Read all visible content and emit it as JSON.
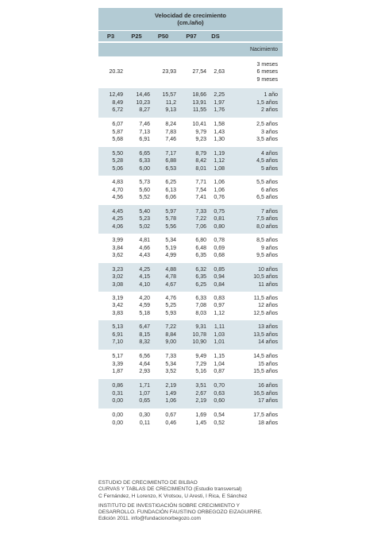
{
  "header": {
    "title": "Velocidad de crecimiento",
    "subtitle": "(cm./año)",
    "columns": [
      "P3",
      "P25",
      "P50",
      "P97",
      "DS"
    ]
  },
  "birth_label": "Nacimiento",
  "groups": [
    {
      "shade": "plain",
      "p3": [
        "20.32"
      ],
      "p25": [
        ""
      ],
      "p50": [
        "23,93"
      ],
      "p97": [
        "27,54"
      ],
      "ds": [
        "2,63"
      ],
      "age": [
        "3 meses",
        "6 meses",
        "9 meses"
      ]
    },
    {
      "shade": "shaded",
      "p3": [
        "12,49",
        "8,49",
        "6,72"
      ],
      "p25": [
        "14,46",
        "10,23",
        "8,27"
      ],
      "p50": [
        "15,57",
        "11,2",
        "9,13"
      ],
      "p97": [
        "18,66",
        "13,91",
        "11,55"
      ],
      "ds": [
        "2,25",
        "1,97",
        "1,76"
      ],
      "age": [
        "1 año",
        "1,5 años",
        "2 años"
      ]
    },
    {
      "shade": "plain",
      "p3": [
        "6,07",
        "5,87",
        "5,68"
      ],
      "p25": [
        "7,46",
        "7,13",
        "6,91"
      ],
      "p50": [
        "8,24",
        "7,83",
        "7,46"
      ],
      "p97": [
        "10,41",
        "9,79",
        "9,23"
      ],
      "ds": [
        "1,58",
        "1,43",
        "1,30"
      ],
      "age": [
        "2,5 años",
        "3 años",
        "3,5 años"
      ]
    },
    {
      "shade": "shaded",
      "p3": [
        "5,50",
        "5,28",
        "5,06"
      ],
      "p25": [
        "6,65",
        "6,33",
        "6,00"
      ],
      "p50": [
        "7,17",
        "6,88",
        "6,53"
      ],
      "p97": [
        "8,79",
        "8,42",
        "8,01"
      ],
      "ds": [
        "1,19",
        "1,12",
        "1,08"
      ],
      "age": [
        "4 años",
        "4,5 años",
        "5 años"
      ]
    },
    {
      "shade": "plain",
      "p3": [
        "4,83",
        "4,70",
        "4,56"
      ],
      "p25": [
        "5,73",
        "5,60",
        "5,52"
      ],
      "p50": [
        "6,25",
        "6,13",
        "6,06"
      ],
      "p97": [
        "7,71",
        "7,54",
        "7,41"
      ],
      "ds": [
        "1,06",
        "1,06",
        "0,76"
      ],
      "age": [
        "5,5 años",
        "6 años",
        "6,5 años"
      ]
    },
    {
      "shade": "shaded",
      "p3": [
        "4,45",
        "4,25",
        "4,06"
      ],
      "p25": [
        "5,40",
        "5,23",
        "5,02"
      ],
      "p50": [
        "5,97",
        "5,78",
        "5,56"
      ],
      "p97": [
        "7,33",
        "7,22",
        "7,06"
      ],
      "ds": [
        "0,75",
        "0,81",
        "0,80"
      ],
      "age": [
        "7 años",
        "7,5 años",
        "8,0 años"
      ]
    },
    {
      "shade": "plain",
      "p3": [
        "3,99",
        "3,84",
        "3,62"
      ],
      "p25": [
        "4,81",
        "4,66",
        "4,43"
      ],
      "p50": [
        "5,34",
        "5,19",
        "4,99"
      ],
      "p97": [
        "6,80",
        "6,48",
        "6,35"
      ],
      "ds": [
        "0,78",
        "0,69",
        "0,68"
      ],
      "age": [
        "8,5 años",
        "9 años",
        "9,5 años"
      ]
    },
    {
      "shade": "shaded",
      "p3": [
        "3,23",
        "3,02",
        "3,08"
      ],
      "p25": [
        "4,25",
        "4,15",
        "4,10"
      ],
      "p50": [
        "4,88",
        "4,78",
        "4,67"
      ],
      "p97": [
        "6,32",
        "6,35",
        "6,25"
      ],
      "ds": [
        "0,85",
        "0,94",
        "0,84"
      ],
      "age": [
        "10 años",
        "10,5 años",
        "11 años"
      ]
    },
    {
      "shade": "plain",
      "p3": [
        "3,19",
        "3,42",
        "3,83"
      ],
      "p25": [
        "4,20",
        "4,59",
        "5,18"
      ],
      "p50": [
        "4,76",
        "5,25",
        "5,93"
      ],
      "p97": [
        "6,33",
        "7,08",
        "8,03"
      ],
      "ds": [
        "0,83",
        "0,97",
        "1,12"
      ],
      "age": [
        "11,5 años",
        "12 años",
        "12,5 años"
      ]
    },
    {
      "shade": "shaded",
      "p3": [
        "5,13",
        "6,91",
        "7,10"
      ],
      "p25": [
        "6,47",
        "8,15",
        "8,32"
      ],
      "p50": [
        "7,22",
        "8,84",
        "9,00"
      ],
      "p97": [
        "9,31",
        "10,78",
        "10,90"
      ],
      "ds": [
        "1,11",
        "1,03",
        "1,01"
      ],
      "age": [
        "13 años",
        "13,5 años",
        "14 años"
      ]
    },
    {
      "shade": "plain",
      "p3": [
        "5,17",
        "3,39",
        "1,87"
      ],
      "p25": [
        "6,56",
        "4,64",
        "2,93"
      ],
      "p50": [
        "7,33",
        "5,34",
        "3,52"
      ],
      "p97": [
        "9,49",
        "7,29",
        "5,16"
      ],
      "ds": [
        "1,15",
        "1,04",
        "0,87"
      ],
      "age": [
        "14,5 años",
        "15 años",
        "15,5 años"
      ]
    },
    {
      "shade": "shaded",
      "p3": [
        "0,86",
        "0,31",
        "0,00"
      ],
      "p25": [
        "1,71",
        "1,07",
        "0,65"
      ],
      "p50": [
        "2,19",
        "1,49",
        "1,06"
      ],
      "p97": [
        "3,51",
        "2,67",
        "2,19"
      ],
      "ds": [
        "0,70",
        "0,63",
        "0,60"
      ],
      "age": [
        "16 años",
        "16,5 años",
        "17 años"
      ]
    },
    {
      "shade": "plain",
      "p3": [
        "0,00",
        "0,00"
      ],
      "p25": [
        "0,30",
        "0,11"
      ],
      "p50": [
        "0,67",
        "0,46"
      ],
      "p97": [
        "1,69",
        "1,45"
      ],
      "ds": [
        "0,54",
        "0,52"
      ],
      "age": [
        "17,5 años",
        "18 años"
      ]
    }
  ],
  "footer": {
    "block1": [
      "ESTUDIO DE CRECIMIENTO DE BILBAO",
      "CURVAS Y TABLAS DE CRECIMIENTO (Estudio transversal)",
      "C Fernández, H Lorenzo, K Vrotsou, U Aresti, I Rica, E Sánchez"
    ],
    "block2": [
      "INSTITUTO DE INVESTIGACIÓN SOBRE CRECIMIENTO Y",
      "DESARROLLO. FUNDACIÓN FAUSTINO ORBEGOZO EIZAGUIRRE.",
      "Edición 2011. info@fundacionorbegozo.com"
    ]
  }
}
